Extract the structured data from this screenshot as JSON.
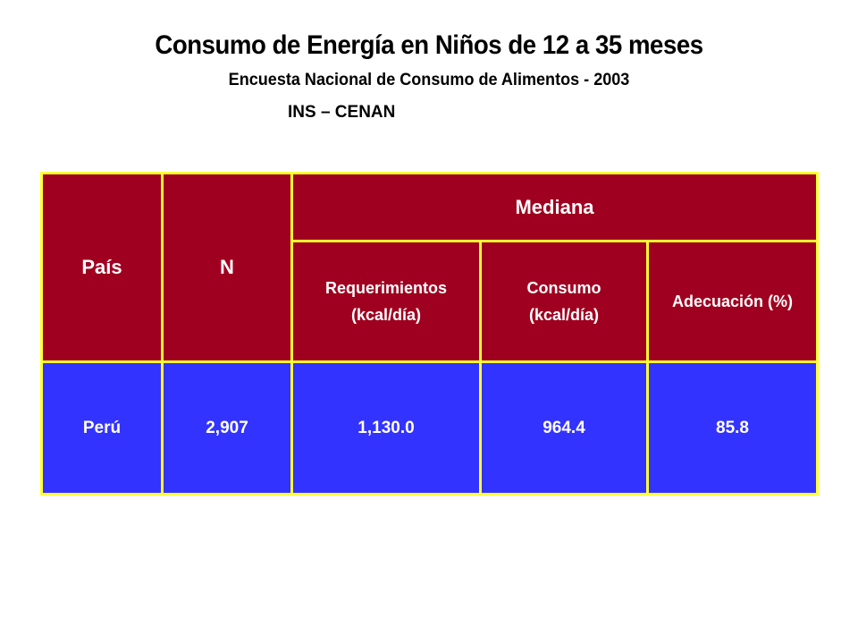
{
  "title": "Consumo de Energía en Niños de 12 a 35 meses",
  "subtitle": "Encuesta Nacional de Consumo de Alimentos - 2003",
  "source": "INS – CENAN",
  "table": {
    "headers": {
      "pais": "País",
      "n": "N",
      "mediana": "Mediana",
      "requerimientos_line1": "Requerimientos",
      "requerimientos_line2": "(kcal/día)",
      "consumo_line1": "Consumo",
      "consumo_line2": "(kcal/día)",
      "adecuacion": "Adecuación (%)"
    },
    "rows": [
      {
        "pais": "Perú",
        "n": "2,907",
        "requerimientos": "1,130.0",
        "consumo": "964.4",
        "adecuacion": "85.8"
      }
    ]
  }
}
